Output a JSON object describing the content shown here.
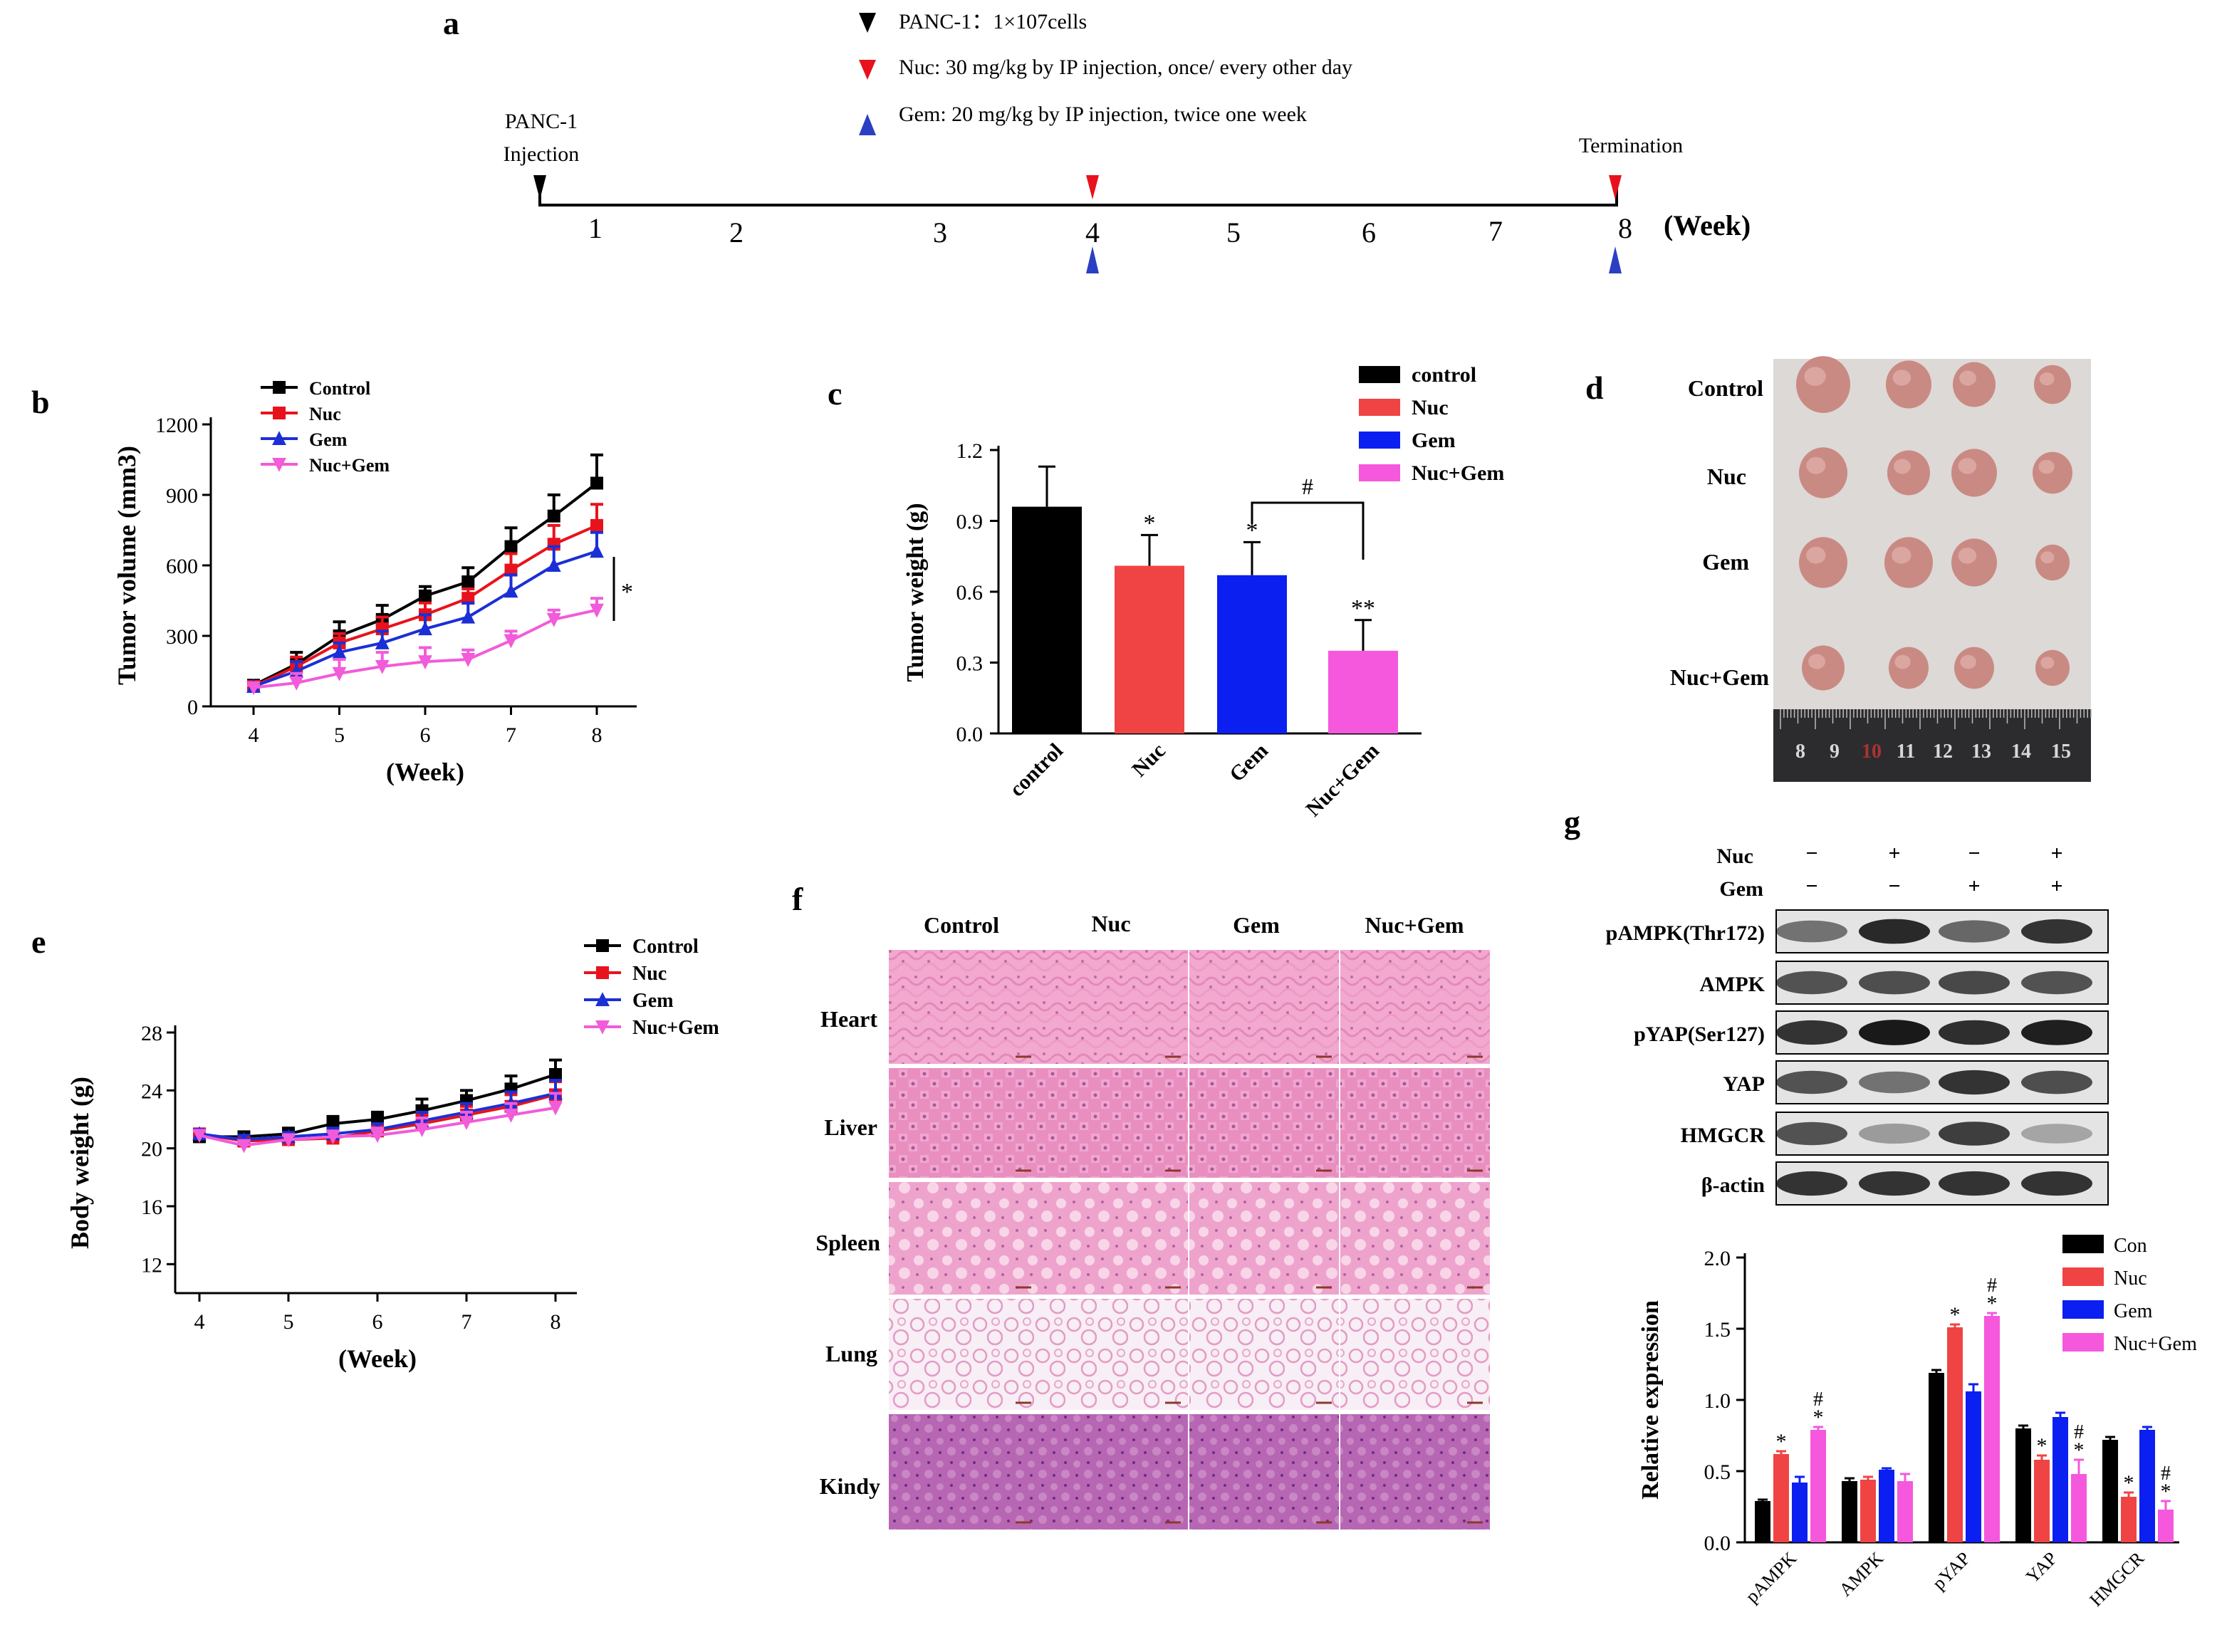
{
  "panel_labels": {
    "a": "a",
    "b": "b",
    "c": "c",
    "d": "d",
    "e": "e",
    "f": "f",
    "g": "g"
  },
  "panel_a": {
    "legend": [
      {
        "text": "PANC-1：1×107cells",
        "color": "#000000"
      },
      {
        "text": "Nuc: 30 mg/kg by IP injection, once/ every other day",
        "color": "#e8121c"
      },
      {
        "text": "Gem: 20 mg/kg by IP injection, twice one week",
        "color": "#2b3fc4"
      }
    ],
    "start_label_1": "PANC-1",
    "start_label_2": "Injection",
    "end_label": "Termination",
    "weeks": [
      "1",
      "2",
      "3",
      "4",
      "5",
      "6",
      "7",
      "8"
    ],
    "unit": "(Week)"
  },
  "chart_data": [
    {
      "id": "b",
      "type": "line",
      "ylabel": "Tumor volume (mm3)",
      "xlabel": "(Week)",
      "x": [
        4,
        4.5,
        5,
        5.5,
        6,
        6.5,
        7,
        7.5,
        8
      ],
      "xticks": [
        4,
        5,
        6,
        7,
        8
      ],
      "yticks": [
        0,
        300,
        600,
        900,
        1200
      ],
      "ylim": [
        0,
        1200
      ],
      "series": [
        {
          "name": "Control",
          "color": "#000000",
          "marker": "square",
          "values": [
            90,
            180,
            300,
            370,
            470,
            530,
            680,
            810,
            950
          ],
          "err": [
            15,
            50,
            60,
            60,
            40,
            60,
            80,
            90,
            120
          ]
        },
        {
          "name": "Nuc",
          "color": "#e8121c",
          "marker": "square",
          "values": [
            85,
            170,
            270,
            330,
            390,
            460,
            580,
            690,
            770
          ],
          "err": [
            15,
            40,
            40,
            50,
            50,
            40,
            70,
            80,
            90
          ]
        },
        {
          "name": "Gem",
          "color": "#1b2fd6",
          "marker": "triangle",
          "values": [
            85,
            150,
            230,
            270,
            330,
            380,
            490,
            600,
            660
          ],
          "err": [
            10,
            40,
            40,
            50,
            60,
            60,
            70,
            80,
            80
          ]
        },
        {
          "name": "Nuc+Gem",
          "color": "#f25bd9",
          "marker": "triangle-down",
          "values": [
            80,
            100,
            140,
            170,
            190,
            200,
            280,
            370,
            410
          ],
          "err": [
            10,
            40,
            60,
            60,
            60,
            40,
            40,
            40,
            50
          ]
        }
      ],
      "annotation": "*"
    },
    {
      "id": "c",
      "type": "bar",
      "ylabel": "Tumor weight (g)",
      "categories": [
        "control",
        "Nuc",
        "Gem",
        "Nuc+Gem"
      ],
      "values": [
        0.96,
        0.71,
        0.67,
        0.35
      ],
      "err": [
        0.17,
        0.13,
        0.14,
        0.13
      ],
      "colors": [
        "#000000",
        "#f04444",
        "#0b1ff0",
        "#f558dc"
      ],
      "yticks": [
        "0.0",
        "0.3",
        "0.6",
        "0.9",
        "1.2"
      ],
      "ylim": [
        0,
        1.2
      ],
      "stars": [
        "",
        "*",
        "*",
        "**"
      ],
      "bracket_label": "#"
    },
    {
      "id": "e",
      "type": "line",
      "ylabel": "Body weight (g)",
      "xlabel": "(Week)",
      "x": [
        4,
        4.5,
        5,
        5.5,
        6,
        6.5,
        7,
        7.5,
        8
      ],
      "xticks": [
        4,
        5,
        6,
        7,
        8
      ],
      "yticks": [
        12,
        16,
        20,
        24,
        28
      ],
      "ylim": [
        10,
        28
      ],
      "series": [
        {
          "name": "Control",
          "color": "#000000",
          "marker": "square",
          "values": [
            20.8,
            20.8,
            21.0,
            21.7,
            22.0,
            22.6,
            23.3,
            24.1,
            25.1
          ],
          "err": [
            0.3,
            0.3,
            0.4,
            0.5,
            0.5,
            0.8,
            0.7,
            0.9,
            1.0
          ]
        },
        {
          "name": "Nuc",
          "color": "#e8121c",
          "marker": "square",
          "values": [
            21.0,
            20.5,
            20.6,
            20.7,
            21.2,
            21.7,
            22.3,
            22.9,
            23.7
          ],
          "err": [
            0.3,
            0.3,
            0.3,
            0.4,
            0.4,
            0.6,
            0.6,
            0.8,
            0.9
          ]
        },
        {
          "name": "Gem",
          "color": "#1b2fd6",
          "marker": "triangle",
          "values": [
            21.0,
            20.6,
            20.8,
            21.0,
            21.3,
            21.9,
            22.5,
            23.1,
            23.8
          ],
          "err": [
            0.3,
            0.3,
            0.3,
            0.4,
            0.4,
            0.6,
            0.6,
            0.8,
            0.9
          ]
        },
        {
          "name": "Nuc+Gem",
          "color": "#f25bd9",
          "marker": "triangle-down",
          "values": [
            20.9,
            20.2,
            20.6,
            20.8,
            20.9,
            21.3,
            21.8,
            22.3,
            22.8
          ],
          "err": [
            0.3,
            0.3,
            0.3,
            0.4,
            0.5,
            0.8,
            0.7,
            0.8,
            1.0
          ]
        }
      ]
    },
    {
      "id": "g",
      "type": "bar",
      "ylabel": "Relative expression",
      "categories": [
        "pAMPK",
        "AMPK",
        "pYAP",
        "YAP",
        "HMGCR"
      ],
      "yticks": [
        "0.0",
        "0.5",
        "1.0",
        "1.5",
        "2.0"
      ],
      "ylim": [
        0,
        2.0
      ],
      "series": [
        {
          "name": "Con",
          "color": "#000000",
          "values": [
            0.29,
            0.43,
            1.19,
            0.8,
            0.72
          ],
          "err": [
            0.01,
            0.02,
            0.02,
            0.02,
            0.02
          ]
        },
        {
          "name": "Nuc",
          "color": "#f04444",
          "values": [
            0.62,
            0.44,
            1.51,
            0.58,
            0.32
          ],
          "err": [
            0.02,
            0.02,
            0.02,
            0.03,
            0.03
          ]
        },
        {
          "name": "Gem",
          "color": "#0b1ff0",
          "values": [
            0.42,
            0.51,
            1.06,
            0.88,
            0.79
          ],
          "err": [
            0.04,
            0.01,
            0.05,
            0.03,
            0.02
          ]
        },
        {
          "name": "Nuc+Gem",
          "color": "#f558dc",
          "values": [
            0.79,
            0.43,
            1.59,
            0.48,
            0.23
          ],
          "err": [
            0.02,
            0.05,
            0.02,
            0.1,
            0.06
          ]
        }
      ],
      "marks": [
        [
          "",
          "*",
          "",
          "*#"
        ],
        [
          "",
          "",
          "",
          ""
        ],
        [
          "",
          "*",
          "",
          "*#"
        ],
        [
          "",
          "*",
          "",
          "*#"
        ],
        [
          "",
          "*",
          "",
          "*#"
        ]
      ]
    }
  ],
  "panel_d": {
    "rows": [
      "Control",
      "Nuc",
      "Gem",
      "Nuc+Gem"
    ],
    "ruler": [
      "8",
      "9",
      "10",
      "11",
      "12",
      "13",
      "14",
      "15"
    ]
  },
  "panel_f": {
    "columns": [
      "Control",
      "Nuc",
      "Gem",
      "Nuc+Gem"
    ],
    "rows": [
      "Heart",
      "Liver",
      "Spleen",
      "Lung",
      "Kindy"
    ]
  },
  "panel_g_blot": {
    "treatments": [
      {
        "label": "Nuc",
        "values": [
          "−",
          "+",
          "−",
          "+"
        ]
      },
      {
        "label": "Gem",
        "values": [
          "−",
          "−",
          "+",
          "+"
        ]
      }
    ],
    "rows": [
      "pAMPK(Thr172)",
      "AMPK",
      "pYAP(Ser127)",
      "YAP",
      "HMGCR",
      "β-actin"
    ]
  }
}
